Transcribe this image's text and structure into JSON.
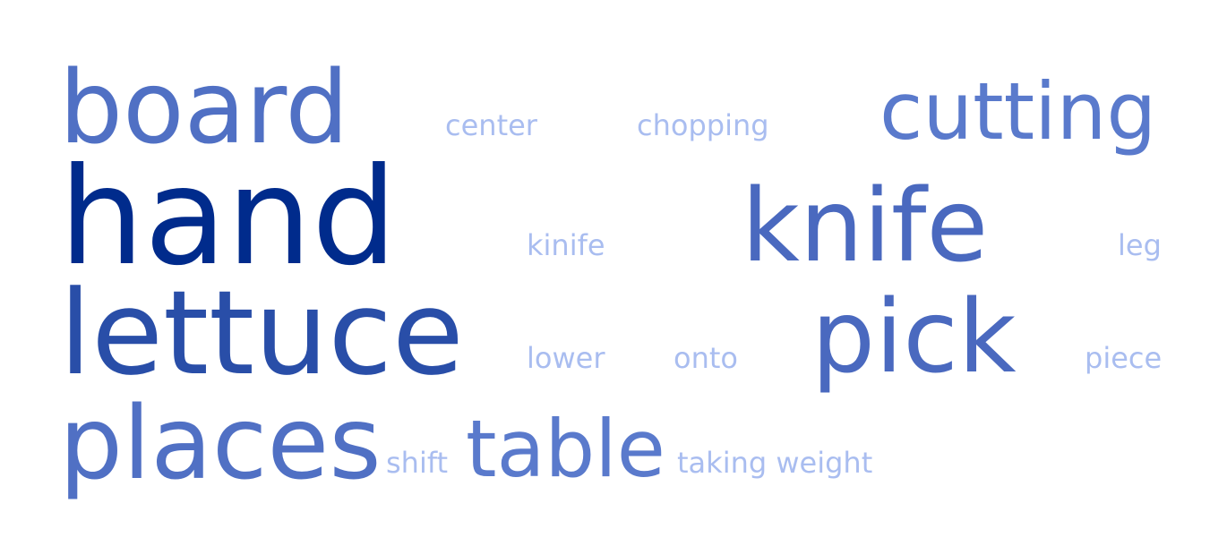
{
  "words": [
    {
      "text": "board",
      "color": "#5070c4"
    },
    {
      "text": "center",
      "color": "#a9bdf0"
    },
    {
      "text": "chopping",
      "color": "#a9bdf0"
    },
    {
      "text": "cutting",
      "color": "#5a7acc"
    },
    {
      "text": "hand",
      "color": "#002b8c"
    },
    {
      "text": "kinife",
      "color": "#a9bdf0"
    },
    {
      "text": "knife",
      "color": "#4a69bf"
    },
    {
      "text": "leg",
      "color": "#a9bdf0"
    },
    {
      "text": "lettuce",
      "color": "#294ea8"
    },
    {
      "text": "lower",
      "color": "#a9bdf0"
    },
    {
      "text": "onto",
      "color": "#a9bdf0"
    },
    {
      "text": "pick",
      "color": "#4a69bf"
    },
    {
      "text": "piece",
      "color": "#a9bdf0"
    },
    {
      "text": "places",
      "color": "#5070c4"
    },
    {
      "text": "shift",
      "color": "#a9bdf0"
    },
    {
      "text": "table",
      "color": "#5a7acc"
    },
    {
      "text": "taking weight",
      "color": "#a9bdf0"
    }
  ]
}
